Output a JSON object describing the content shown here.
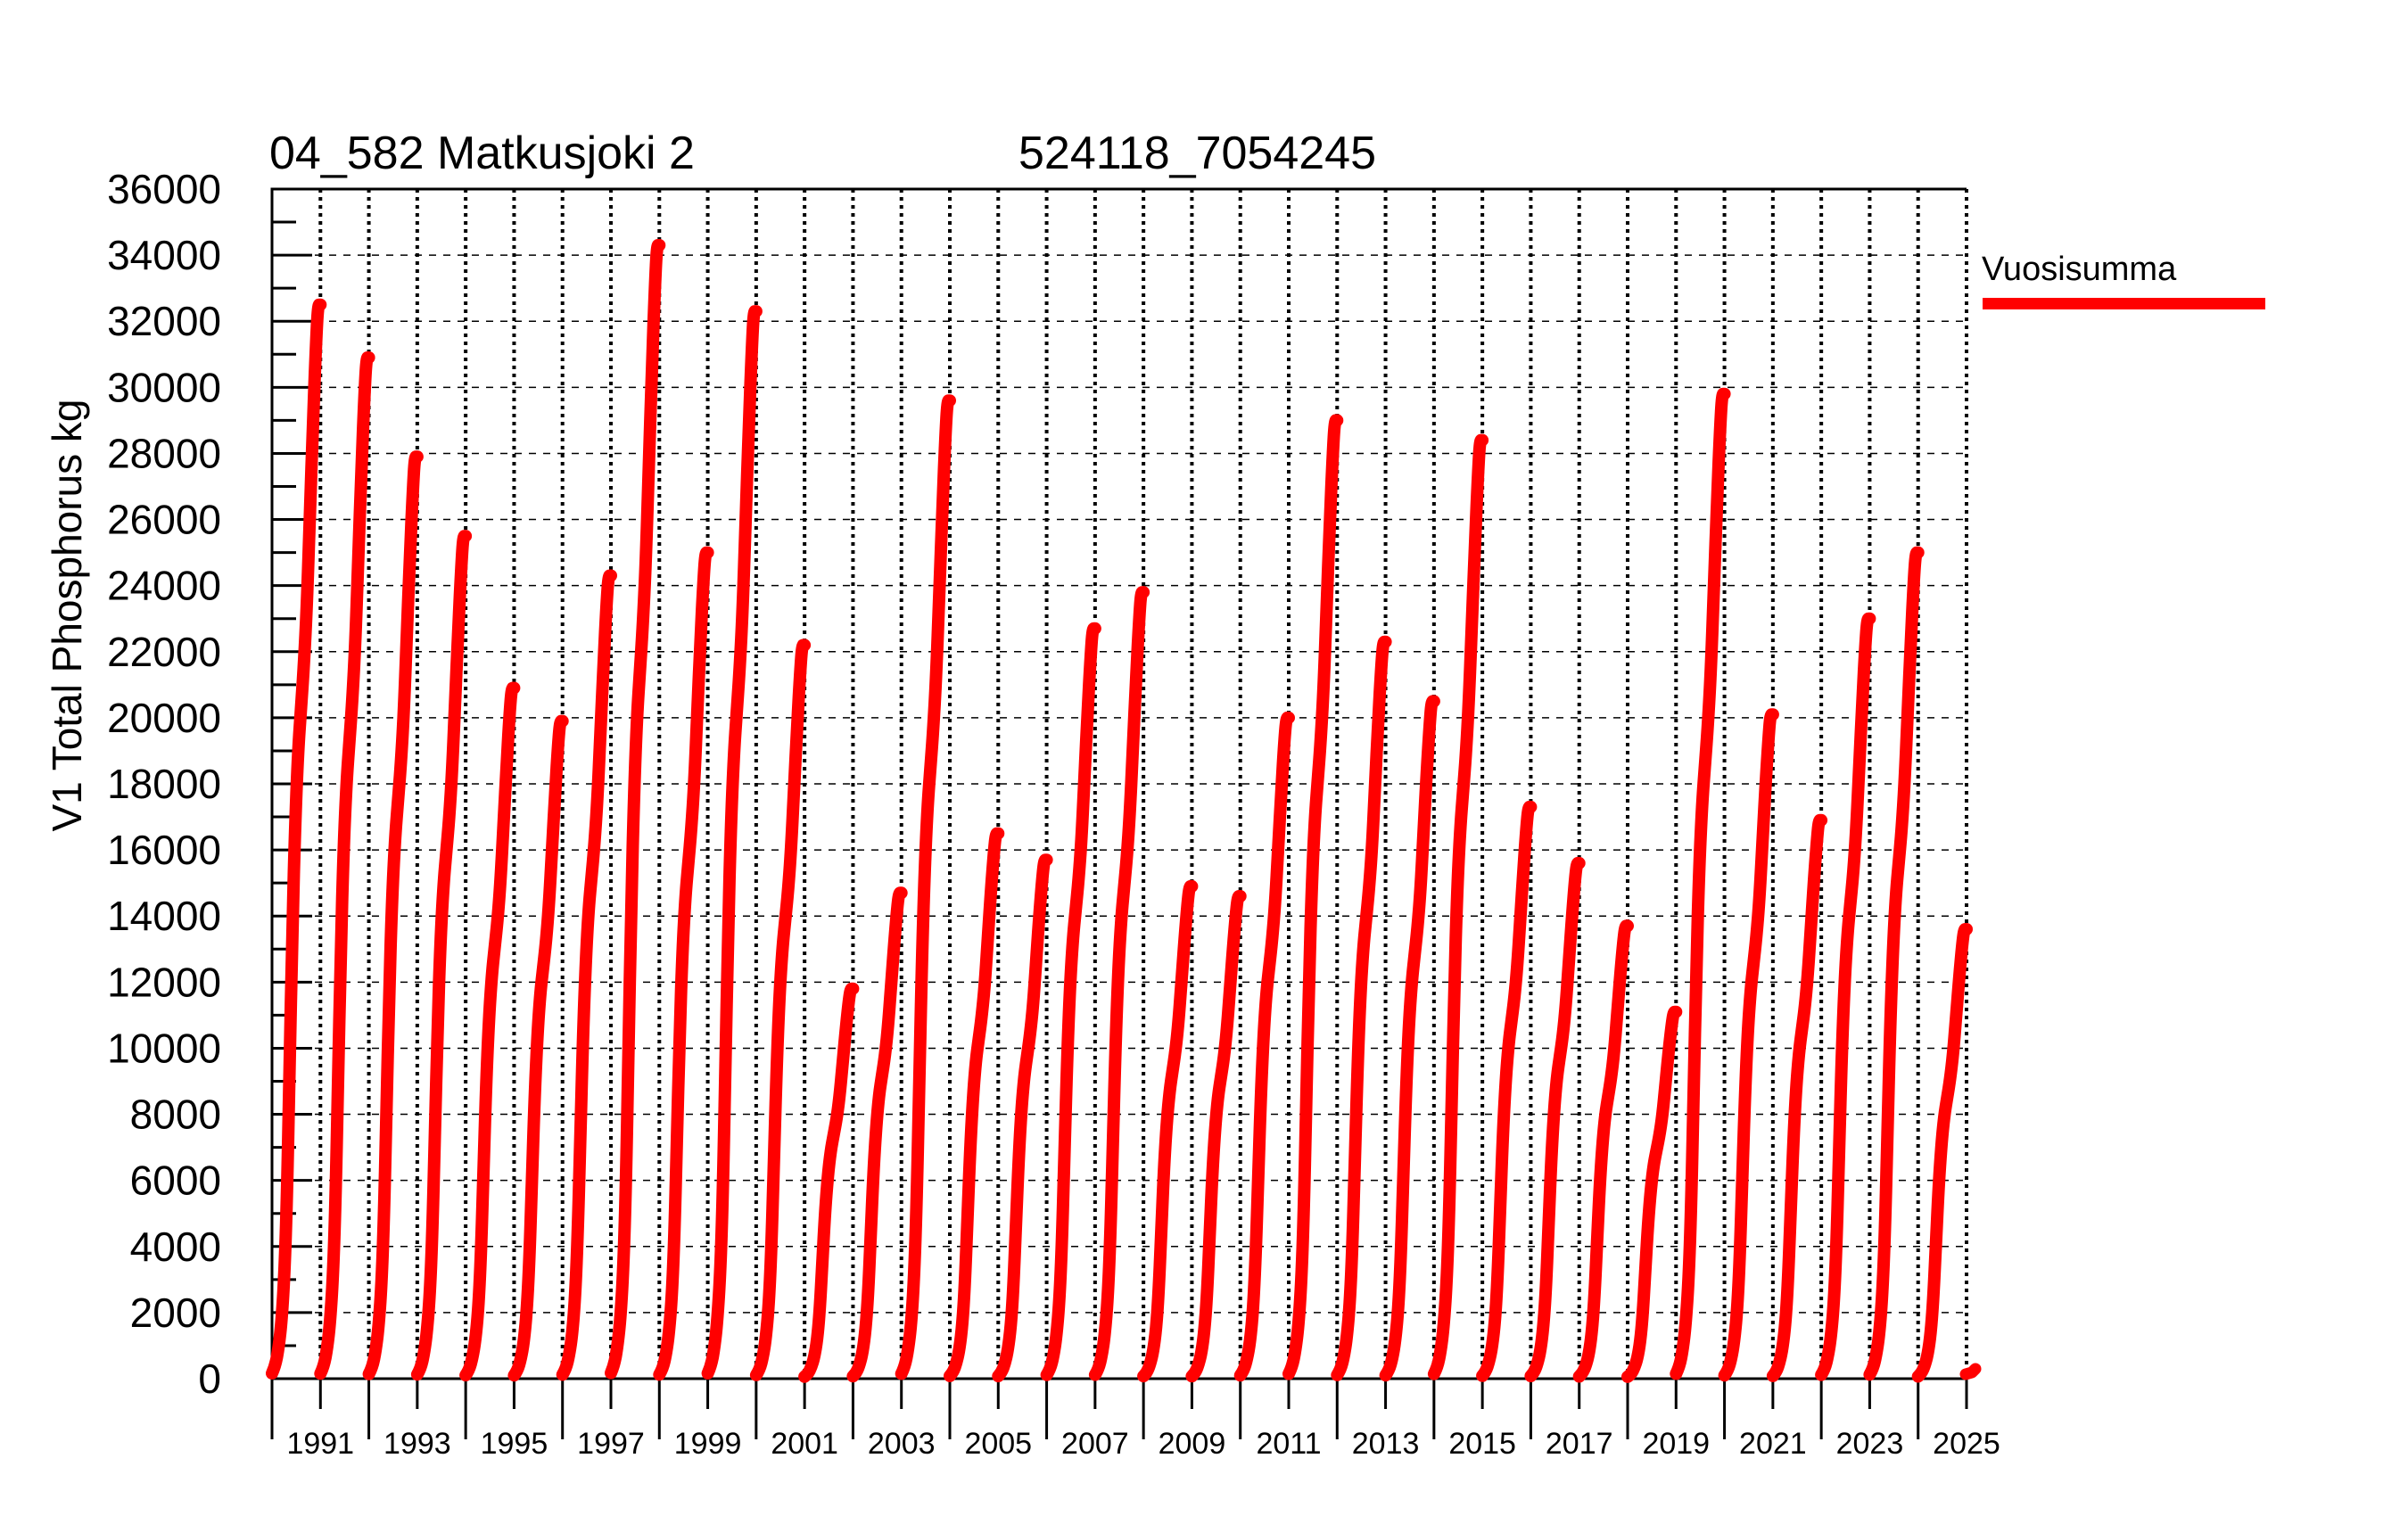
{
  "header": {
    "title_left": "04_582 Matkusjoki 2",
    "title_right": "524118_7054245"
  },
  "legend": {
    "label": "Vuosisumma",
    "color": "#ff0000"
  },
  "y_axis": {
    "label": "V1 Total Phosphorus kg",
    "min": 0,
    "max": 36000,
    "major_step": 2000,
    "minor_step": 1000,
    "tick_labels": [
      "0",
      "2000",
      "4000",
      "6000",
      "8000",
      "10000",
      "12000",
      "14000",
      "16000",
      "18000",
      "20000",
      "22000",
      "24000",
      "26000",
      "28000",
      "30000",
      "32000",
      "34000",
      "36000"
    ]
  },
  "x_axis": {
    "start_year": 1990,
    "end_year": 2025,
    "labels": [
      "1991",
      "1993",
      "1995",
      "1997",
      "1999",
      "2001",
      "2003",
      "2005",
      "2007",
      "2009",
      "2011",
      "2013",
      "2015",
      "2017",
      "2019",
      "2021",
      "2023",
      "2025"
    ]
  },
  "chart_data": {
    "type": "line",
    "title": "04_582 Matkusjoki 2",
    "subtitle": "524118_7054245",
    "ylabel": "V1 Total Phosphorus kg",
    "ylim": [
      0,
      36000
    ],
    "x_range_years": [
      1990,
      2025
    ],
    "grid": true,
    "legend_position": "right-top",
    "series": [
      {
        "name": "Vuosisumma",
        "color": "#ff0000",
        "annual_totals": [
          {
            "year": 1990,
            "total_kg": 32500
          },
          {
            "year": 1991,
            "total_kg": 30900
          },
          {
            "year": 1992,
            "total_kg": 27900
          },
          {
            "year": 1993,
            "total_kg": 25500
          },
          {
            "year": 1994,
            "total_kg": 20900
          },
          {
            "year": 1995,
            "total_kg": 19900
          },
          {
            "year": 1996,
            "total_kg": 24300
          },
          {
            "year": 1997,
            "total_kg": 34300
          },
          {
            "year": 1998,
            "total_kg": 25000
          },
          {
            "year": 1999,
            "total_kg": 32300
          },
          {
            "year": 2000,
            "total_kg": 22200
          },
          {
            "year": 2001,
            "total_kg": 11800
          },
          {
            "year": 2002,
            "total_kg": 14700
          },
          {
            "year": 2003,
            "total_kg": 29600
          },
          {
            "year": 2004,
            "total_kg": 16500
          },
          {
            "year": 2005,
            "total_kg": 15700
          },
          {
            "year": 2006,
            "total_kg": 22700
          },
          {
            "year": 2007,
            "total_kg": 23800
          },
          {
            "year": 2008,
            "total_kg": 14900
          },
          {
            "year": 2009,
            "total_kg": 14600
          },
          {
            "year": 2010,
            "total_kg": 20000
          },
          {
            "year": 2011,
            "total_kg": 29000
          },
          {
            "year": 2012,
            "total_kg": 22300
          },
          {
            "year": 2013,
            "total_kg": 20500
          },
          {
            "year": 2014,
            "total_kg": 28400
          },
          {
            "year": 2015,
            "total_kg": 17300
          },
          {
            "year": 2016,
            "total_kg": 15600
          },
          {
            "year": 2017,
            "total_kg": 13700
          },
          {
            "year": 2018,
            "total_kg": 11100
          },
          {
            "year": 2019,
            "total_kg": 29800
          },
          {
            "year": 2020,
            "total_kg": 20100
          },
          {
            "year": 2021,
            "total_kg": 16900
          },
          {
            "year": 2022,
            "total_kg": 23000
          },
          {
            "year": 2023,
            "total_kg": 25000
          },
          {
            "year": 2024,
            "total_kg": 13600
          },
          {
            "year": 2025,
            "total_kg": 250,
            "partial": true
          }
        ]
      }
    ]
  }
}
